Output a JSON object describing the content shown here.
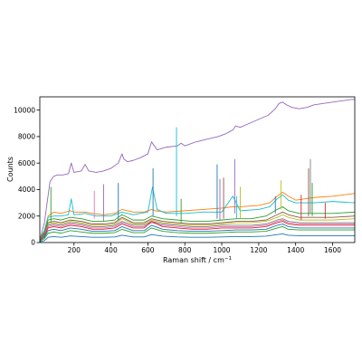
{
  "chart_data": {
    "type": "line",
    "title": "",
    "xlabel": "Raman shift / cm",
    "xlabel_superscript": "−1",
    "ylabel": "Counts",
    "xlim": [
      15,
      1720
    ],
    "ylim": [
      0,
      11000
    ],
    "xticks": [
      200,
      400,
      600,
      800,
      1000,
      1200,
      1400,
      1600
    ],
    "yticks": [
      0,
      2000,
      4000,
      6000,
      8000,
      10000
    ],
    "grid": false,
    "legend": "none",
    "palette": [
      "#1f77b4",
      "#ff7f0e",
      "#2ca02c",
      "#d62728",
      "#9467bd",
      "#8c564b",
      "#e377c2",
      "#7f7f7f",
      "#bcbd22",
      "#17becf"
    ],
    "series": [
      {
        "color": "#9467bd",
        "x": [
          15,
          40,
          70,
          90,
          110,
          140,
          170,
          185,
          200,
          240,
          260,
          280,
          320,
          360,
          400,
          440,
          460,
          470,
          490,
          520,
          560,
          600,
          620,
          630,
          650,
          700,
          760,
          780,
          800,
          860,
          920,
          980,
          1020,
          1060,
          1075,
          1100,
          1150,
          1200,
          1250,
          1290,
          1310,
          1330,
          1350,
          1380,
          1420,
          1460,
          1500,
          1550,
          1600,
          1650,
          1700,
          1720
        ],
        "y": [
          200,
          1500,
          4600,
          5000,
          5100,
          5100,
          5200,
          6000,
          5300,
          5400,
          5900,
          5400,
          5300,
          5400,
          5600,
          6000,
          6700,
          6300,
          6100,
          6200,
          6400,
          6700,
          7600,
          7400,
          7000,
          7200,
          7300,
          7500,
          7300,
          7600,
          7800,
          8000,
          8200,
          8500,
          8800,
          8700,
          9000,
          9300,
          9600,
          10100,
          10500,
          10600,
          10400,
          10200,
          10100,
          10200,
          10400,
          10500,
          10600,
          10700,
          10800,
          10800
        ]
      },
      {
        "color": "#ff7f0e",
        "x": [
          15,
          40,
          60,
          90,
          130,
          180,
          200,
          260,
          300,
          360,
          420,
          460,
          520,
          580,
          620,
          640,
          700,
          800,
          900,
          1000,
          1060,
          1100,
          1200,
          1260,
          1300,
          1330,
          1360,
          1400,
          1500,
          1600,
          1720
        ],
        "y": [
          300,
          900,
          2000,
          2300,
          2200,
          2400,
          2300,
          2300,
          2200,
          2100,
          2200,
          2500,
          2300,
          2300,
          2500,
          2400,
          2300,
          2400,
          2500,
          2600,
          2700,
          2700,
          2800,
          3000,
          3500,
          3800,
          3500,
          3200,
          3400,
          3500,
          3700
        ]
      },
      {
        "color": "#17becf",
        "x": [
          15,
          40,
          60,
          90,
          130,
          170,
          185,
          200,
          260,
          320,
          400,
          460,
          520,
          600,
          625,
          650,
          700,
          800,
          900,
          1000,
          1060,
          1100,
          1200,
          1260,
          1300,
          1330,
          1360,
          1400,
          1500,
          1600,
          1720
        ],
        "y": [
          300,
          900,
          1900,
          2000,
          2000,
          2100,
          3300,
          2100,
          2200,
          2000,
          2000,
          2300,
          2100,
          2300,
          4200,
          2500,
          2200,
          2200,
          2300,
          2300,
          3500,
          2400,
          2500,
          2700,
          3300,
          3600,
          3200,
          3000,
          3000,
          3100,
          3000
        ]
      },
      {
        "color": "#2ca02c",
        "x": [
          15,
          40,
          60,
          90,
          130,
          180,
          240,
          300,
          360,
          420,
          460,
          520,
          580,
          620,
          680,
          760,
          840,
          920,
          1000,
          1080,
          1160,
          1240,
          1300,
          1330,
          1360,
          1420,
          1500,
          1600,
          1720
        ],
        "y": [
          300,
          800,
          1700,
          1800,
          1700,
          1900,
          1800,
          1600,
          1600,
          1700,
          2100,
          1700,
          1700,
          2000,
          1800,
          1700,
          1600,
          1600,
          1700,
          1800,
          1800,
          2000,
          2500,
          2700,
          2400,
          2200,
          2200,
          2200,
          2300
        ]
      },
      {
        "color": "#8c564b",
        "x": [
          15,
          40,
          60,
          90,
          130,
          180,
          240,
          300,
          360,
          420,
          460,
          520,
          580,
          620,
          680,
          760,
          840,
          920,
          1000,
          1080,
          1160,
          1240,
          1300,
          1330,
          1360,
          1420,
          1500,
          1600,
          1720
        ],
        "y": [
          250,
          700,
          1500,
          1600,
          1500,
          1700,
          1600,
          1400,
          1400,
          1500,
          1900,
          1500,
          1500,
          1800,
          1600,
          1500,
          1400,
          1400,
          1500,
          1600,
          1600,
          1700,
          2100,
          2300,
          2100,
          1900,
          1900,
          1900,
          2000
        ]
      },
      {
        "color": "#bcbd22",
        "x": [
          15,
          40,
          60,
          90,
          130,
          180,
          240,
          300,
          360,
          420,
          460,
          520,
          580,
          620,
          680,
          760,
          840,
          920,
          1000,
          1080,
          1160,
          1240,
          1300,
          1330,
          1360,
          1420,
          1500,
          1600,
          1720
        ],
        "y": [
          250,
          600,
          1400,
          1500,
          1400,
          1600,
          1500,
          1300,
          1300,
          1400,
          1800,
          1400,
          1400,
          1700,
          1500,
          1400,
          1300,
          1300,
          1400,
          1500,
          1500,
          1600,
          1900,
          2100,
          1900,
          1700,
          1700,
          1700,
          1800
        ]
      },
      {
        "color": "#7f7f7f",
        "x": [
          15,
          40,
          60,
          90,
          130,
          180,
          240,
          300,
          360,
          420,
          460,
          520,
          580,
          620,
          680,
          760,
          840,
          920,
          1000,
          1080,
          1160,
          1240,
          1300,
          1330,
          1360,
          1420,
          1500,
          1600,
          1720
        ],
        "y": [
          200,
          600,
          1300,
          1400,
          1300,
          1500,
          1400,
          1200,
          1200,
          1300,
          1600,
          1300,
          1300,
          1600,
          1400,
          1300,
          1200,
          1200,
          1300,
          1300,
          1300,
          1400,
          1700,
          1800,
          1600,
          1500,
          1500,
          1500,
          1500
        ]
      },
      {
        "color": "#e377c2",
        "x": [
          15,
          40,
          60,
          90,
          130,
          180,
          240,
          300,
          360,
          420,
          460,
          520,
          580,
          620,
          680,
          760,
          840,
          920,
          1000,
          1080,
          1160,
          1240,
          1300,
          1330,
          1360,
          1420,
          1500,
          1600,
          1720
        ],
        "y": [
          200,
          500,
          1200,
          1300,
          1200,
          1400,
          1300,
          1100,
          1100,
          1200,
          1500,
          1200,
          1200,
          1500,
          1300,
          1200,
          1100,
          1100,
          1200,
          1200,
          1200,
          1300,
          1600,
          1700,
          1500,
          1400,
          1400,
          1400,
          1400
        ]
      },
      {
        "color": "#d62728",
        "x": [
          15,
          40,
          60,
          90,
          130,
          180,
          240,
          300,
          360,
          420,
          460,
          520,
          580,
          620,
          680,
          760,
          840,
          920,
          1000,
          1080,
          1160,
          1240,
          1300,
          1330,
          1360,
          1420,
          1500,
          1600,
          1720
        ],
        "y": [
          200,
          500,
          1100,
          1200,
          1100,
          1300,
          1200,
          1000,
          1000,
          1100,
          1400,
          1100,
          1100,
          1600,
          1200,
          1100,
          1000,
          1000,
          1100,
          1100,
          1100,
          1200,
          1500,
          1600,
          1400,
          1300,
          1300,
          1300,
          1300
        ]
      },
      {
        "color": "#1f77b4",
        "x": [
          15,
          40,
          60,
          90,
          130,
          180,
          240,
          300,
          360,
          420,
          460,
          520,
          580,
          620,
          680,
          760,
          840,
          920,
          1000,
          1080,
          1160,
          1240,
          1300,
          1330,
          1360,
          1420,
          1500,
          1600,
          1720
        ],
        "y": [
          150,
          400,
          900,
          1000,
          900,
          1100,
          1000,
          850,
          850,
          900,
          1200,
          900,
          900,
          1300,
          1000,
          900,
          850,
          850,
          900,
          950,
          950,
          1000,
          1300,
          1400,
          1200,
          1100,
          1100,
          1100,
          1100
        ]
      },
      {
        "color": "#2ca02c",
        "x": [
          15,
          40,
          60,
          90,
          130,
          180,
          240,
          300,
          360,
          420,
          460,
          520,
          580,
          620,
          680,
          760,
          840,
          920,
          1000,
          1080,
          1160,
          1240,
          1300,
          1330,
          1360,
          1420,
          1500,
          1600,
          1720
        ],
        "y": [
          100,
          300,
          700,
          800,
          700,
          900,
          800,
          700,
          700,
          750,
          1000,
          750,
          750,
          1100,
          850,
          750,
          700,
          700,
          750,
          800,
          800,
          850,
          1100,
          1200,
          1000,
          950,
          950,
          950,
          950
        ]
      },
      {
        "color": "#1f77b4",
        "x": [
          15,
          40,
          60,
          90,
          130,
          180,
          240,
          300,
          360,
          420,
          460,
          520,
          580,
          620,
          680,
          760,
          840,
          920,
          1000,
          1080,
          1160,
          1240,
          1300,
          1330,
          1360,
          1420,
          1500,
          1600,
          1720
        ],
        "y": [
          50,
          150,
          400,
          450,
          400,
          500,
          450,
          400,
          400,
          420,
          550,
          420,
          420,
          600,
          480,
          420,
          400,
          400,
          420,
          450,
          450,
          480,
          600,
          650,
          550,
          520,
          520,
          520,
          520
        ]
      }
    ],
    "spikes": [
      {
        "x": 75,
        "y": 4200,
        "base": 1500,
        "color": "#2ca02c"
      },
      {
        "x": 310,
        "y": 3900,
        "base": 1800,
        "color": "#e377c2"
      },
      {
        "x": 360,
        "y": 4400,
        "base": 1600,
        "color": "#9467bd"
      },
      {
        "x": 440,
        "y": 4500,
        "base": 1700,
        "color": "#1f77b4"
      },
      {
        "x": 628,
        "y": 5600,
        "base": 2000,
        "color": "#1f77b4"
      },
      {
        "x": 755,
        "y": 8700,
        "base": 2000,
        "color": "#17becf"
      },
      {
        "x": 780,
        "y": 3300,
        "base": 1500,
        "color": "#2ca02c"
      },
      {
        "x": 975,
        "y": 5900,
        "base": 1800,
        "color": "#1f77b4"
      },
      {
        "x": 990,
        "y": 4800,
        "base": 1700,
        "color": "#9467bd"
      },
      {
        "x": 1010,
        "y": 4900,
        "base": 1800,
        "color": "#8c564b"
      },
      {
        "x": 1070,
        "y": 6300,
        "base": 2200,
        "color": "#9467bd"
      },
      {
        "x": 1080,
        "y": 3500,
        "base": 1800,
        "color": "#17becf"
      },
      {
        "x": 1100,
        "y": 4200,
        "base": 1800,
        "color": "#bcbd22"
      },
      {
        "x": 1290,
        "y": 3500,
        "base": 2200,
        "color": "#1f77b4"
      },
      {
        "x": 1320,
        "y": 4700,
        "base": 2500,
        "color": "#bcbd22"
      },
      {
        "x": 1430,
        "y": 3600,
        "base": 1700,
        "color": "#d62728"
      },
      {
        "x": 1470,
        "y": 5600,
        "base": 2000,
        "color": "#8c564b"
      },
      {
        "x": 1480,
        "y": 6300,
        "base": 2200,
        "color": "#7f7f7f"
      },
      {
        "x": 1490,
        "y": 4500,
        "base": 2000,
        "color": "#2ca02c"
      },
      {
        "x": 1560,
        "y": 3000,
        "base": 1800,
        "color": "#d62728"
      }
    ]
  }
}
